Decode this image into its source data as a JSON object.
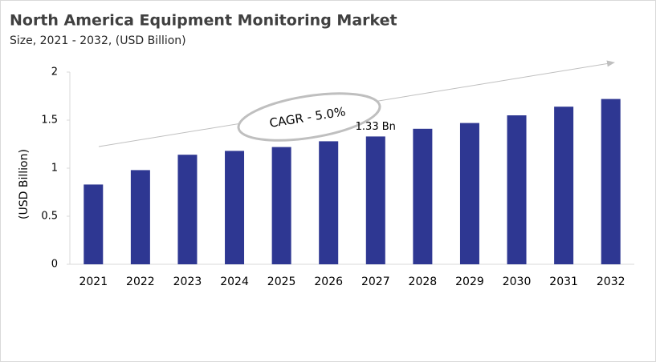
{
  "chart_data": {
    "type": "bar",
    "title": "North America Equipment Monitoring Market",
    "subtitle": "Size, 2021 - 2032, (USD Billion)",
    "y_label": "(USD Billion)",
    "annotation": "CAGR - 5.0%",
    "categories": [
      "2021",
      "2022",
      "2023",
      "2024",
      "2025",
      "2026",
      "2027",
      "2028",
      "2029",
      "2030",
      "2031",
      "2032"
    ],
    "values": [
      0.83,
      0.98,
      1.14,
      1.18,
      1.22,
      1.28,
      1.33,
      1.41,
      1.47,
      1.55,
      1.64,
      1.72
    ],
    "value_labels": [
      null,
      null,
      null,
      null,
      null,
      null,
      "1.33 Bn",
      null,
      null,
      null,
      null,
      null
    ],
    "color": "#2e3792",
    "ylim": [
      0,
      2
    ],
    "yticks": [
      0,
      0.5,
      1,
      1.5,
      2
    ],
    "grid": false
  }
}
